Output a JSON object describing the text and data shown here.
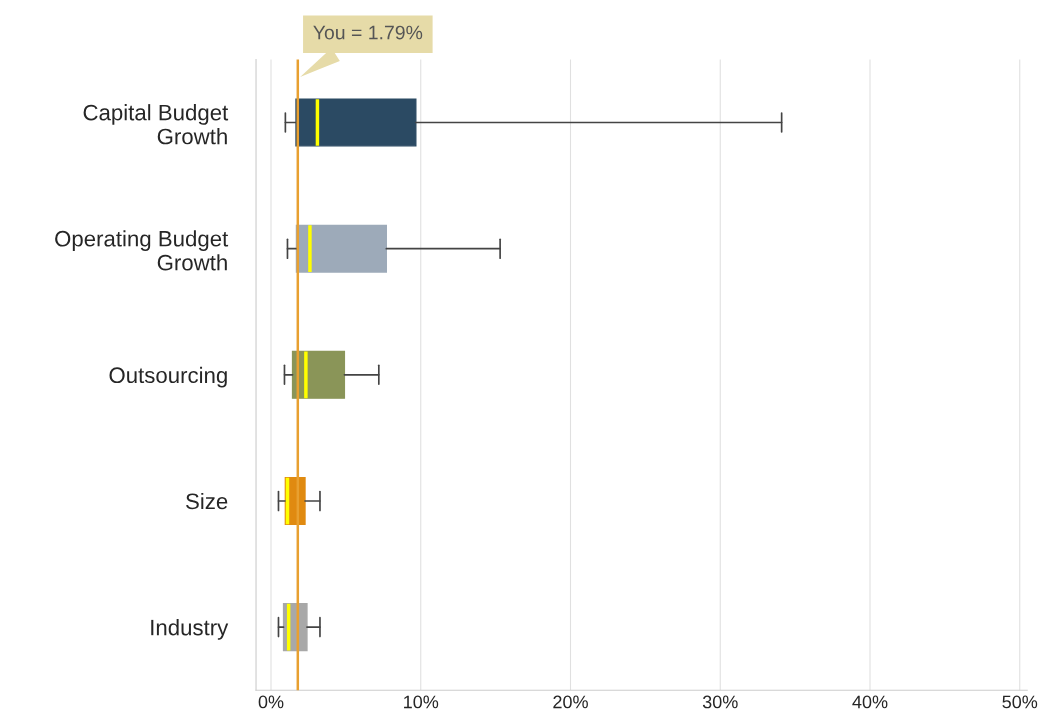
{
  "chart_data": {
    "type": "box",
    "orientation": "horizontal",
    "categories": [
      "Capital Budget Growth",
      "Operating Budget Growth",
      "Outsourcing",
      "Size",
      "Industry"
    ],
    "boxes": [
      {
        "low": 0.96,
        "q1": 1.67,
        "median": 3.1,
        "q3": 9.67,
        "high": 34.1
      },
      {
        "low": 1.1,
        "q1": 1.7,
        "median": 2.6,
        "q3": 7.7,
        "high": 15.3
      },
      {
        "low": 0.9,
        "q1": 1.44,
        "median": 2.33,
        "q3": 4.9,
        "high": 7.2
      },
      {
        "low": 0.5,
        "q1": 0.96,
        "median": 1.1,
        "q3": 2.27,
        "high": 3.27
      },
      {
        "low": 0.5,
        "q1": 0.84,
        "median": 1.18,
        "q3": 2.4,
        "high": 3.27
      }
    ],
    "colors": [
      "#2b4a63",
      "#9daab9",
      "#8a9558",
      "#e08a10",
      "#a8a8a8"
    ],
    "xlim": [
      -1,
      50.5
    ],
    "xticks": [
      {
        "value": 0,
        "label": "0%"
      },
      {
        "value": 10,
        "label": "10%"
      },
      {
        "value": 20,
        "label": "20%"
      },
      {
        "value": 30,
        "label": "30%"
      },
      {
        "value": 40,
        "label": "40%"
      },
      {
        "value": 50,
        "label": "50%"
      }
    ],
    "ref_lines": [
      {
        "axis": "x",
        "value": 1.79,
        "label": "You = 1.79%",
        "color": "#e8a030"
      }
    ],
    "grid": "x",
    "legend": false
  }
}
